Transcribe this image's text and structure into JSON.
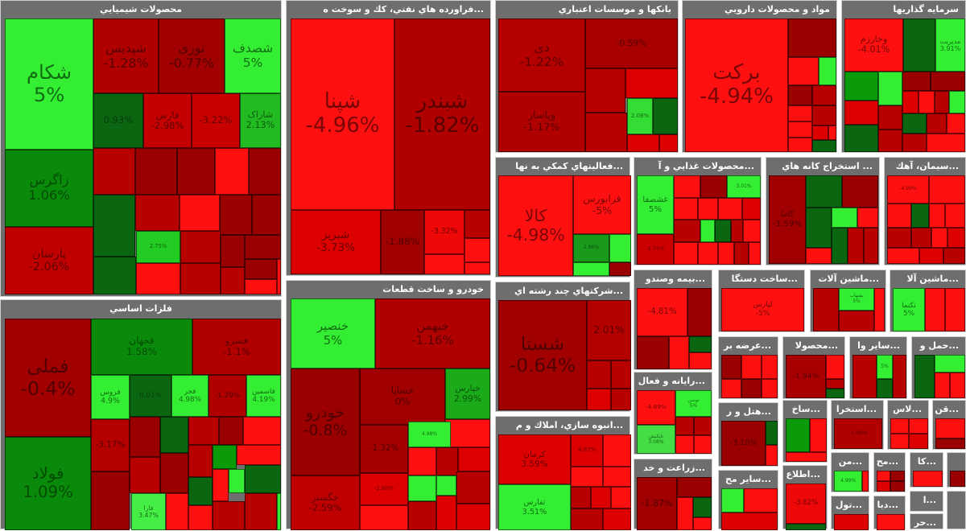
{
  "sectors": [
    {
      "title": "محصولات شيميايي",
      "tiles": [
        {
          "label": "شکام",
          "pct": "5%",
          "color": "#33ee33"
        },
        {
          "label": "زاگرس",
          "pct": "1.06%",
          "color": "#0a8a0a"
        },
        {
          "label": "پارسان",
          "pct": "-2.06%",
          "color": "#c00000"
        },
        {
          "label": "شپدیس",
          "pct": "-1.28%",
          "color": "#b00000"
        },
        {
          "label": "نوری",
          "pct": "-0.77%",
          "color": "#a00000"
        },
        {
          "label": "شصدف",
          "pct": "5%",
          "color": "#33ee33"
        },
        {
          "label": "",
          "pct": "0.93%",
          "color": "#0b6612"
        },
        {
          "label": "فارس",
          "pct": "-2.98%",
          "color": "#c40000"
        },
        {
          "label": "",
          "pct": "-3.22%",
          "color": "#c80000"
        },
        {
          "label": "شاراک",
          "pct": "2.13%",
          "color": "#22bb22"
        },
        {
          "label": "",
          "pct": "2.75%",
          "color": "#22cc22"
        }
      ]
    },
    {
      "title": "...فراورده هاي نفتي، كك و سوخت ه",
      "tiles": [
        {
          "label": "شپنا",
          "pct": "-4.96%",
          "color": "#ff1010"
        },
        {
          "label": "شبندر",
          "pct": "-1.82%",
          "color": "#b00000"
        },
        {
          "label": "شبریز",
          "pct": "-3.73%",
          "color": "#dd0000"
        },
        {
          "label": "",
          "pct": "-1.88%",
          "color": "#a00000"
        },
        {
          "label": "",
          "pct": "-3.32%",
          "color": "#ee0808"
        }
      ]
    },
    {
      "title": "بانكها و موسسات اعتباري",
      "tiles": [
        {
          "label": "دی",
          "pct": "-1.22%",
          "color": "#b50000"
        },
        {
          "label": "وپاسار",
          "pct": "-1.17%",
          "color": "#b00000"
        },
        {
          "label": "",
          "pct": "-0.59%",
          "color": "#a80000"
        },
        {
          "label": "",
          "pct": "2.08%",
          "color": "#33dd33"
        }
      ]
    },
    {
      "title": "مواد و محصولات دارويي",
      "tiles": [
        {
          "label": "برکت",
          "pct": "-4.94%",
          "color": "#ff1010"
        }
      ]
    },
    {
      "title": "سرمايه گذاريها",
      "tiles": [
        {
          "label": "وخارزم",
          "pct": "-4.01%",
          "color": "#ff1010"
        },
        {
          "label": "مدیریت",
          "pct": "3.91%",
          "color": "#33ee33"
        }
      ]
    },
    {
      "title": "...فعاليتهاي كمكي به نها",
      "tiles": [
        {
          "label": "کالا",
          "pct": "-4.98%",
          "color": "#ff1010"
        },
        {
          "label": "فرابورس",
          "pct": "-5%",
          "color": "#ff1010"
        },
        {
          "label": "",
          "pct": "2.86%",
          "color": "#1a9a1a"
        }
      ]
    },
    {
      "title": "...محصولات غذايي و آ",
      "tiles": [
        {
          "label": "غشصفا",
          "pct": "5%",
          "color": "#33ee33"
        },
        {
          "label": "",
          "pct": "3.01%",
          "color": "#33ee33"
        },
        {
          "label": "",
          "pct": "-1.77%",
          "color": "#cc0000"
        }
      ]
    },
    {
      "title": "... استخراج كانه هاي",
      "tiles": [
        {
          "label": "کاما",
          "pct": "-1.59%",
          "color": "#a00000"
        }
      ]
    },
    {
      "title": "...سيمان، آهك",
      "tiles": [
        {
          "label": "",
          "pct": "-4.99%",
          "color": "#ff1010"
        }
      ]
    },
    {
      "title": "...شركتهاي چند رشته اي",
      "tiles": [
        {
          "label": "شستا",
          "pct": "-0.64%",
          "color": "#a00000"
        },
        {
          "label": "",
          "pct": "2.01%",
          "color": "#b50000"
        }
      ]
    },
    {
      "title": "...انبوه سازي، املاك و م",
      "tiles": [
        {
          "label": "کرمان",
          "pct": "3.59%",
          "color": "#dd0000"
        },
        {
          "label": "ثفارس",
          "pct": "3.51%",
          "color": "#33ee33"
        },
        {
          "label": "",
          "pct": "4.87%",
          "color": "#dd0000"
        }
      ]
    },
    {
      "title": "خودرو و ساخت قطعات",
      "tiles": [
        {
          "label": "خنصیر",
          "pct": "5%",
          "color": "#33ee33"
        },
        {
          "label": "خبهمن",
          "pct": "-1.16%",
          "color": "#b00000"
        },
        {
          "label": "خودرو",
          "pct": "-0.8%",
          "color": "#9a0000"
        },
        {
          "label": "خساپا",
          "pct": "0%",
          "color": "#a00000"
        },
        {
          "label": "خپارس",
          "pct": "2.99%",
          "color": "#1aaa1a"
        },
        {
          "label": "خگستر",
          "pct": "-2.59%",
          "color": "#c00000"
        },
        {
          "label": "",
          "pct": "-1.32%",
          "color": "#a40000"
        },
        {
          "label": "",
          "pct": "4.98%",
          "color": "#33ee33"
        },
        {
          "label": "",
          "pct": "-2.88%",
          "color": "#dd0000"
        }
      ]
    },
    {
      "title": "فلزات اساسي",
      "tiles": [
        {
          "label": "فملی",
          "pct": "-0.4%",
          "color": "#a00000"
        },
        {
          "label": "فولاد",
          "pct": "1.09%",
          "color": "#0a8a0a"
        },
        {
          "label": "فجهان",
          "pct": "1.58%",
          "color": "#0a8a0a"
        },
        {
          "label": "فسرو",
          "pct": "-1.1%",
          "color": "#b00000"
        },
        {
          "label": "فروس",
          "pct": "4.9%",
          "color": "#33ee33"
        },
        {
          "label": "",
          "pct": "0.01%",
          "color": "#0b6612"
        },
        {
          "label": "فجر",
          "pct": "4.98%",
          "color": "#33ee33"
        },
        {
          "label": "",
          "pct": "-1.29%",
          "color": "#b00000"
        },
        {
          "label": "فاسمین",
          "pct": "4.19%",
          "color": "#33ee33"
        },
        {
          "label": "",
          "pct": "-3.17%",
          "color": "#b50000"
        },
        {
          "label": "فارا",
          "pct": "3.47%",
          "color": "#44ee44"
        }
      ]
    },
    {
      "title": "...بيمه وصندو",
      "tiles": [
        {
          "label": "",
          "pct": "-4.81%",
          "color": "#ff1010"
        }
      ]
    },
    {
      "title": "...ساخت دستگا",
      "tiles": [
        {
          "label": "لپارس",
          "pct": "-5%",
          "color": "#ff1010"
        }
      ]
    },
    {
      "title": "...ماشين آلات",
      "tiles": [
        {
          "label": "بشهاب",
          "pct": "5%",
          "color": "#33ee33"
        }
      ]
    },
    {
      "title": "...ماشين آلا",
      "tiles": [
        {
          "label": "تکنما",
          "pct": "5%",
          "color": "#33ee33"
        }
      ]
    },
    {
      "title": "...عرضه بر",
      "tiles": []
    },
    {
      "title": "...محصولا",
      "tiles": [
        {
          "label": "",
          "pct": "-1.94%",
          "color": "#a80000"
        }
      ]
    },
    {
      "title": "...ساير وا",
      "tiles": [
        {
          "label": "",
          "pct": "5%",
          "color": "#33ee33"
        }
      ]
    },
    {
      "title": "...حمل و",
      "tiles": []
    },
    {
      "title": "...رايانه و فعال",
      "tiles": [
        {
          "label": "",
          "pct": "-4.89%",
          "color": "#ff1010"
        },
        {
          "label": "توسن",
          "pct": "5%",
          "color": "#33ee33"
        },
        {
          "label": "تاپکیش",
          "pct": "3.08%",
          "color": "#44dd44"
        }
      ]
    },
    {
      "title": "...زراعت و خد",
      "tiles": [
        {
          "label": "",
          "pct": "-1.87%",
          "color": "#a00000"
        }
      ]
    },
    {
      "title": "...هتل و ر",
      "tiles": [
        {
          "label": "",
          "pct": "-3.10%",
          "color": "#9a0000"
        }
      ]
    },
    {
      "title": "...ساير مح",
      "tiles": []
    },
    {
      "title": "...ساخ",
      "tiles": []
    },
    {
      "title": "...استخرا",
      "tiles": [
        {
          "label": "",
          "pct": "-2.08%",
          "color": "#b00000"
        }
      ]
    },
    {
      "title": "...لاس",
      "tiles": []
    },
    {
      "title": "...قن",
      "tiles": []
    },
    {
      "title": "...اطلاع",
      "tiles": [
        {
          "label": "",
          "pct": "-3.82%",
          "color": "#ee0808"
        }
      ]
    },
    {
      "title": "...من",
      "tiles": [
        {
          "label": "",
          "pct": "4.99%",
          "color": "#33ee33"
        }
      ]
    },
    {
      "title": "...مح",
      "tiles": []
    },
    {
      "title": "...كا",
      "tiles": []
    },
    {
      "title": "",
      "tiles": []
    },
    {
      "title": "...تول",
      "tiles": []
    },
    {
      "title": "...دبا",
      "tiles": []
    },
    {
      "title": "...ا",
      "tiles": []
    },
    {
      "title": "...حر",
      "tiles": []
    },
    {
      "title": "",
      "tiles": []
    }
  ]
}
